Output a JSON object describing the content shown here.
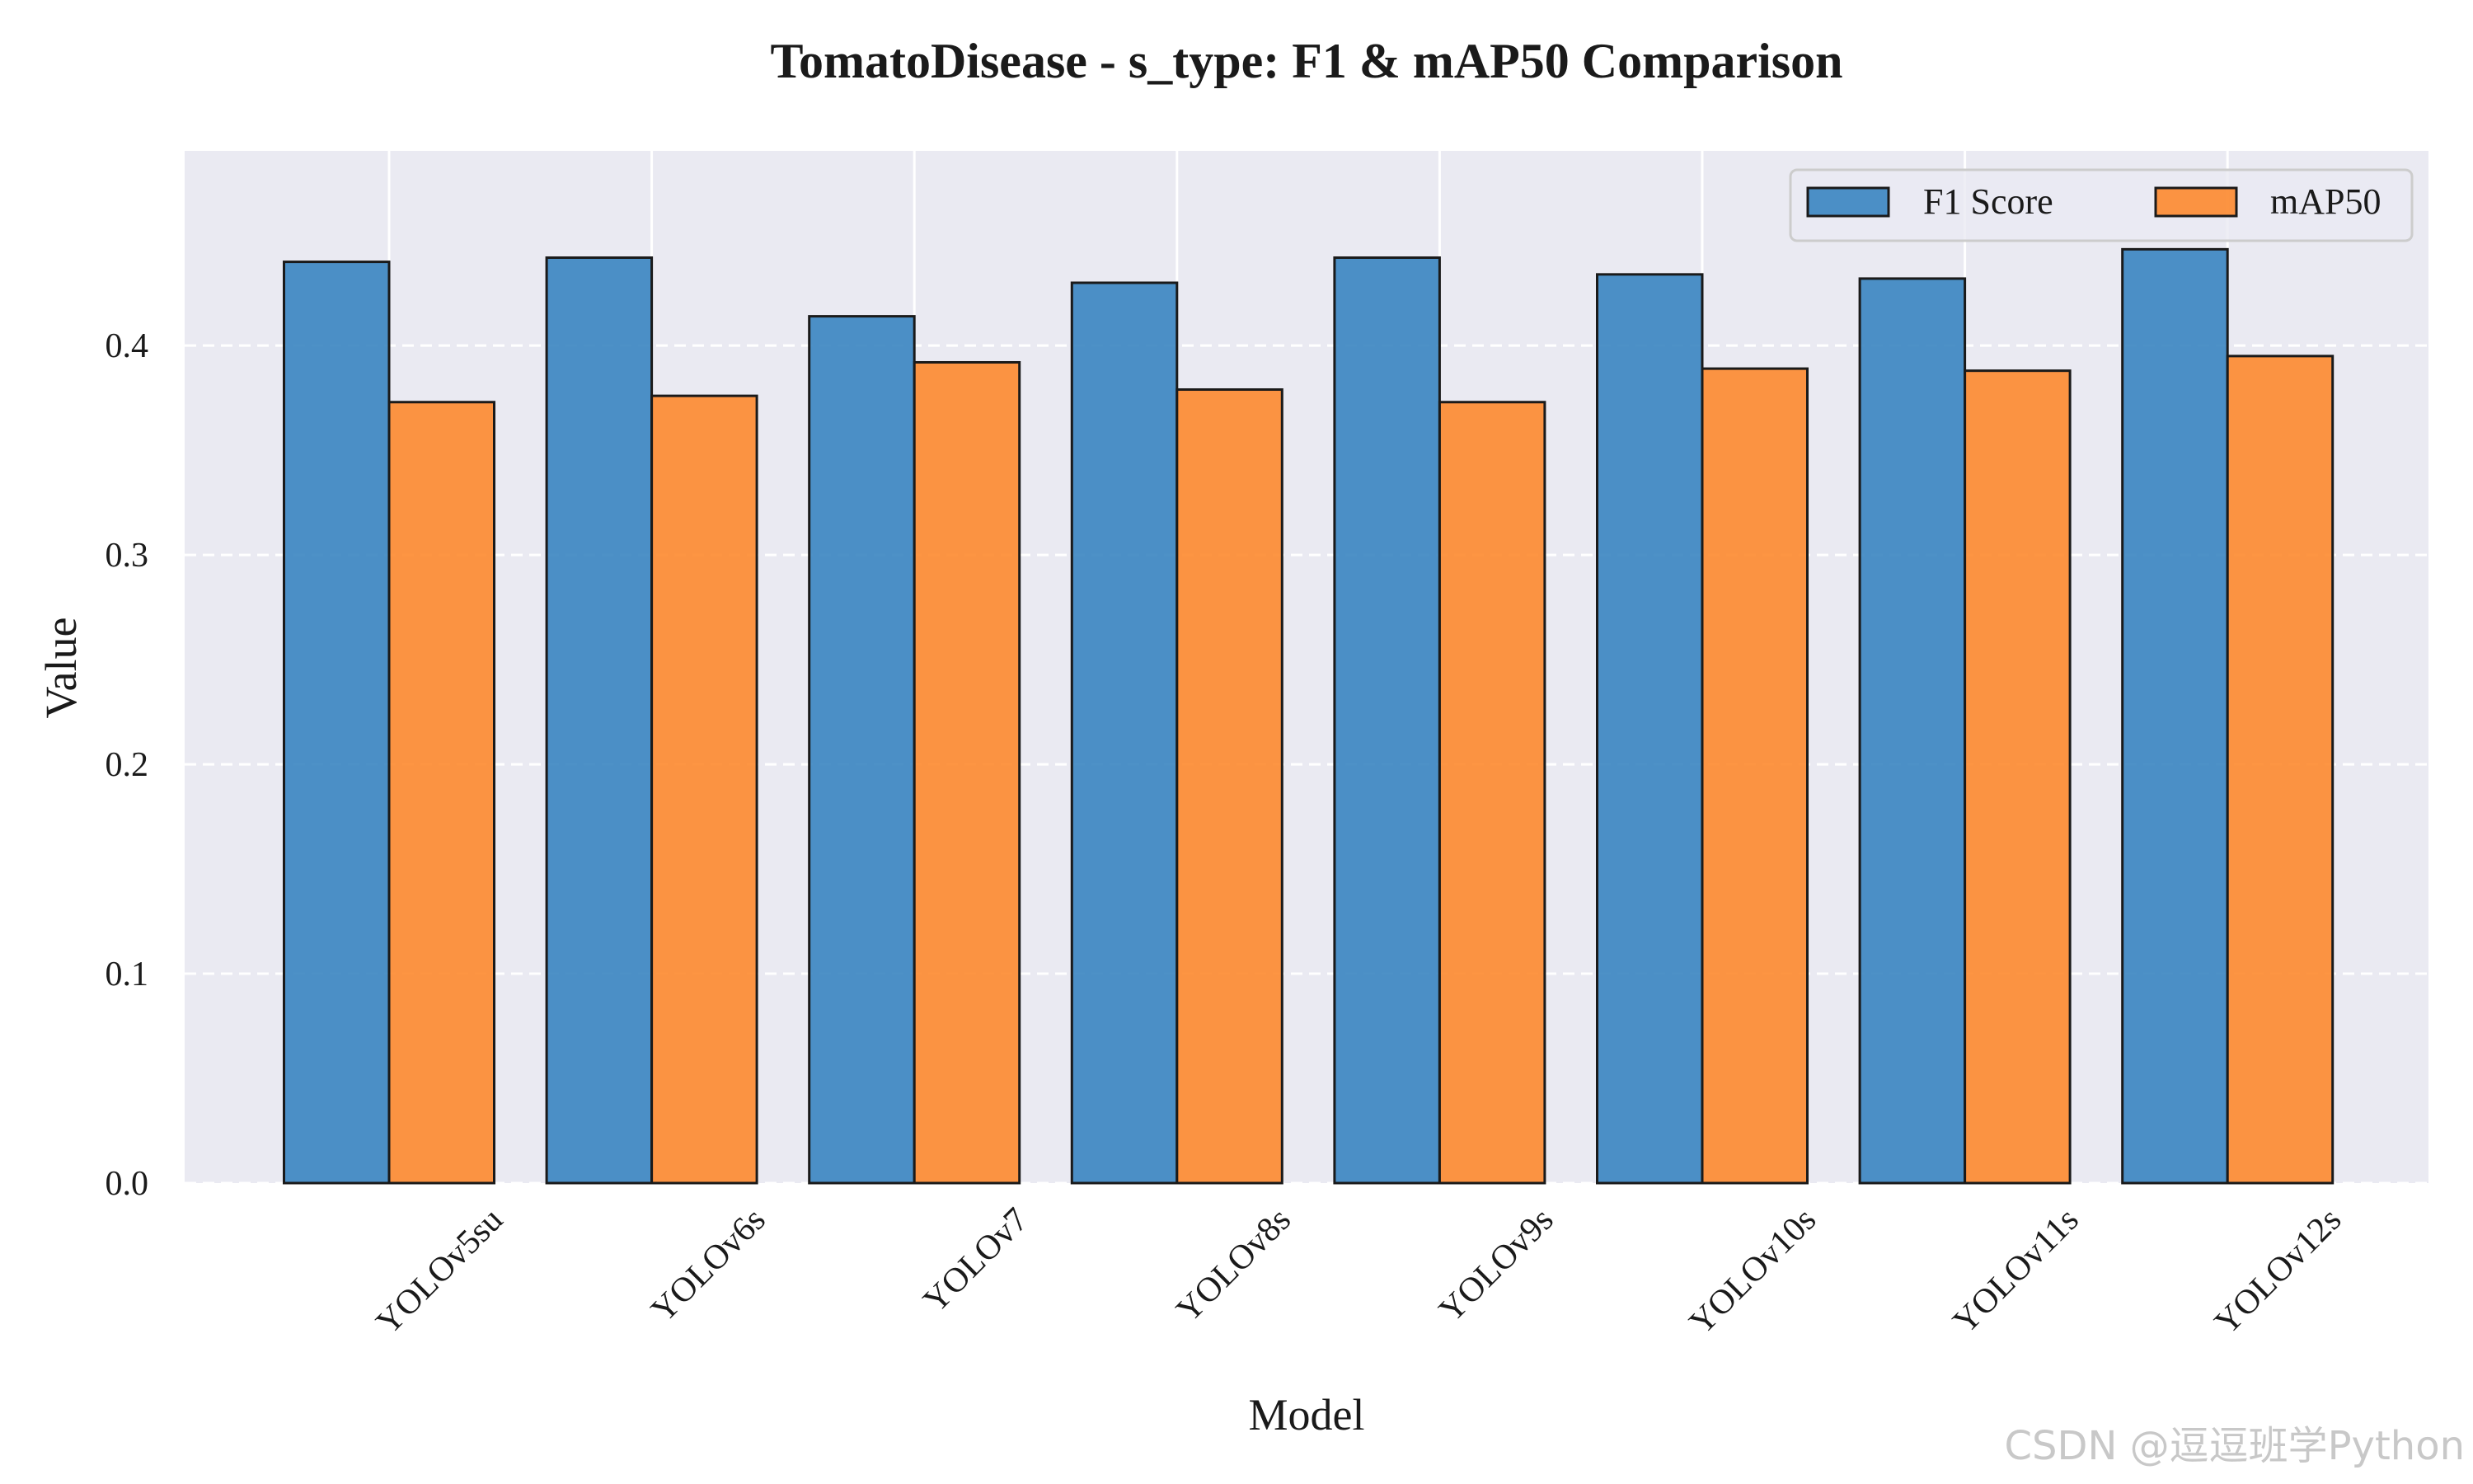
{
  "chart_data": {
    "type": "bar",
    "title": "TomatoDisease - s_type: F1 & mAP50 Comparison",
    "xlabel": "Model",
    "ylabel": "Value",
    "categories": [
      "YOLOv5su",
      "YOLOv6s",
      "YOLOv7",
      "YOLOv8s",
      "YOLOv9s",
      "YOLOv10s",
      "YOLOv11s",
      "YOLOv12s"
    ],
    "series": [
      {
        "name": "F1 Score",
        "color": "#3a85c1",
        "values": [
          0.44,
          0.442,
          0.414,
          0.43,
          0.442,
          0.434,
          0.432,
          0.446
        ]
      },
      {
        "name": "mAP50",
        "color": "#fd8a2f",
        "values": [
          0.373,
          0.376,
          0.392,
          0.379,
          0.373,
          0.389,
          0.388,
          0.395
        ]
      }
    ],
    "ylim": [
      0,
      0.493
    ],
    "yticks": [
      "0.0",
      "0.1",
      "0.2",
      "0.3",
      "0.4"
    ],
    "grid": true,
    "legend_position": "top-right"
  },
  "watermark": "CSDN @逗逗班学Python"
}
